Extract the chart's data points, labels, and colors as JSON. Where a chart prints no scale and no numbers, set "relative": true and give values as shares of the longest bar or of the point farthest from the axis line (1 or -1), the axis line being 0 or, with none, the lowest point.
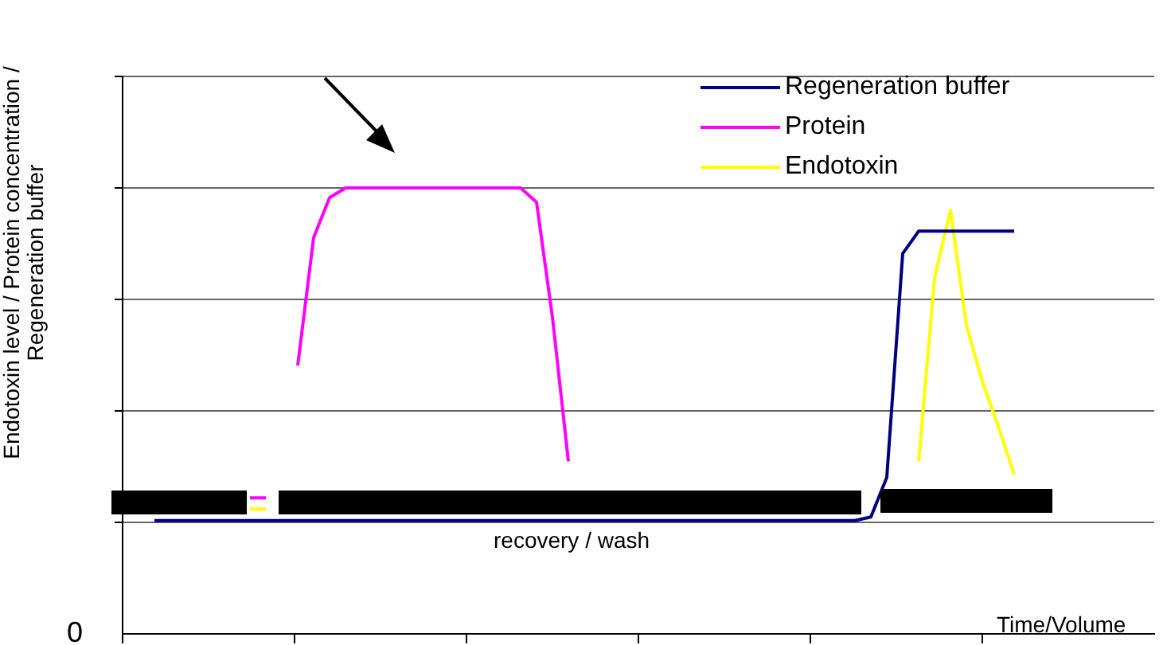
{
  "chart_data": {
    "type": "line",
    "relative": true,
    "ylabel": "Endotoxin level / Protein concentration / Regeneration buffer",
    "xlabel": "Time/Volume",
    "annotations": [
      "recovery / wash",
      "0"
    ],
    "categories": [
      null,
      null,
      null,
      null,
      null,
      null,
      null,
      null,
      null,
      null,
      null,
      null,
      null,
      null,
      null,
      null,
      null,
      null,
      null,
      null,
      null,
      null,
      null,
      null,
      null,
      null,
      null,
      null,
      null,
      null,
      null,
      null,
      null,
      null,
      null,
      null,
      null,
      null,
      null,
      null,
      null,
      null,
      null,
      null,
      null,
      null,
      null,
      null,
      null,
      null,
      null,
      null,
      null,
      null,
      null
    ],
    "grid": "y",
    "legend": "top right",
    "marker": "none",
    "line_style": "solid",
    "series": [
      {
        "name": "Regeneration buffer",
        "color": "#000080",
        "values": [
          0.254,
          0.254,
          0.254,
          0.254,
          0.254,
          0.254,
          0.254,
          0.254,
          0.254,
          0.254,
          0.254,
          0.254,
          0.254,
          0.254,
          0.254,
          0.254,
          0.254,
          0.254,
          0.254,
          0.254,
          0.254,
          0.254,
          0.254,
          0.254,
          0.254,
          0.254,
          0.254,
          0.254,
          0.254,
          0.254,
          0.254,
          0.254,
          0.254,
          0.254,
          0.254,
          0.254,
          0.254,
          0.254,
          0.254,
          0.254,
          0.254,
          0.254,
          0.254,
          0.254,
          0.254,
          0.262,
          0.351,
          0.853,
          0.903,
          0.903,
          0.903,
          0.903,
          0.903,
          0.903,
          0.903
        ]
      },
      {
        "name": "Protein",
        "color": "#ff00ff",
        "values": [
          null,
          null,
          null,
          null,
          null,
          null,
          0.305,
          0.305,
          null,
          0.602,
          0.889,
          0.978,
          1,
          1,
          1,
          1,
          1,
          1,
          1,
          1,
          1,
          1,
          1,
          1,
          0.968,
          0.71,
          0.387,
          null,
          null,
          null,
          null,
          null,
          null,
          null,
          null,
          null,
          null,
          null,
          null,
          null,
          null,
          null,
          null,
          null,
          null,
          null,
          null,
          null,
          null,
          null,
          null,
          null,
          null,
          null,
          null
        ]
      },
      {
        "name": "Endotoxin",
        "color": "#ffff00",
        "values": [
          null,
          null,
          null,
          null,
          null,
          null,
          0.28,
          0.28,
          null,
          null,
          null,
          null,
          null,
          null,
          null,
          null,
          null,
          null,
          null,
          null,
          null,
          null,
          null,
          null,
          null,
          null,
          null,
          null,
          null,
          null,
          null,
          null,
          null,
          null,
          null,
          null,
          null,
          null,
          null,
          null,
          null,
          null,
          null,
          null,
          null,
          null,
          null,
          null,
          0.387,
          0.799,
          0.95,
          0.692,
          0.566,
          0.466,
          0.358
        ]
      }
    ]
  }
}
